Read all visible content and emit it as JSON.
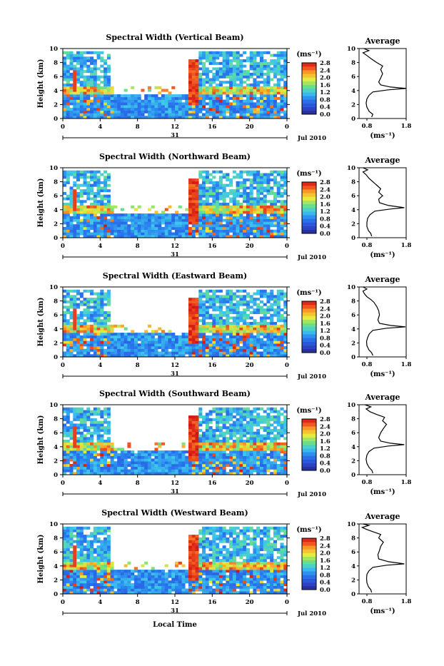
{
  "footer_label": "Local Time",
  "chart_data": [
    {
      "type": "heatmap",
      "title": "Spectral Width (Vertical Beam)",
      "ylabel": "Height (km)",
      "y_ticks": [
        "0",
        "2",
        "4",
        "6",
        "8",
        "10"
      ],
      "ylim": [
        0,
        10
      ],
      "x_ticks": [
        "0",
        "4",
        "8",
        "12",
        "16",
        "20",
        "0"
      ],
      "xlim": [
        0,
        24
      ],
      "date_day": "31",
      "date_label": "Jul 2010",
      "colorbar": {
        "unit": "(ms⁻¹)",
        "ticks": [
          "0.0",
          "0.4",
          "0.8",
          "1.2",
          "1.6",
          "2.0",
          "2.4",
          "2.8"
        ],
        "range": [
          0,
          2.8
        ]
      },
      "profile": {
        "title": "Average",
        "xlabel": "(ms⁻¹)",
        "x_ticks": [
          "0.8",
          "1.8"
        ],
        "xlim": [
          0.6,
          1.8
        ],
        "y_ticks": [
          "0",
          "2",
          "4",
          "6",
          "8",
          "10"
        ],
        "ylim": [
          0,
          10
        ],
        "points": [
          [
            0.92,
            0.2
          ],
          [
            0.95,
            0.6
          ],
          [
            0.86,
            1.0
          ],
          [
            0.8,
            1.6
          ],
          [
            0.78,
            2.2
          ],
          [
            0.8,
            2.8
          ],
          [
            0.85,
            3.3
          ],
          [
            0.95,
            3.8
          ],
          [
            1.35,
            4.1
          ],
          [
            1.8,
            4.3
          ],
          [
            1.4,
            4.5
          ],
          [
            1.15,
            4.8
          ],
          [
            1.1,
            5.2
          ],
          [
            1.15,
            5.8
          ],
          [
            1.2,
            6.4
          ],
          [
            1.15,
            7.0
          ],
          [
            1.2,
            7.5
          ],
          [
            1.05,
            8.0
          ],
          [
            0.92,
            8.5
          ],
          [
            0.8,
            9.0
          ],
          [
            0.7,
            9.4
          ],
          [
            0.85,
            9.7
          ],
          [
            0.72,
            10.0
          ]
        ]
      }
    },
    {
      "type": "heatmap",
      "title": "Spectral Width (Northward Beam)",
      "ylabel": "Height (km)",
      "y_ticks": [
        "0",
        "2",
        "4",
        "6",
        "8",
        "10"
      ],
      "ylim": [
        0,
        10
      ],
      "x_ticks": [
        "0",
        "4",
        "8",
        "12",
        "16",
        "20",
        "0"
      ],
      "xlim": [
        0,
        24
      ],
      "date_day": "31",
      "date_label": "Jul 2010",
      "colorbar": {
        "unit": "(ms⁻¹)",
        "ticks": [
          "0.0",
          "0.4",
          "0.8",
          "1.2",
          "1.6",
          "2.0",
          "2.4",
          "2.8"
        ],
        "range": [
          0,
          2.8
        ]
      },
      "profile": {
        "title": "Average",
        "xlabel": "(ms⁻¹)",
        "x_ticks": [
          "0.8",
          "1.8"
        ],
        "xlim": [
          0.6,
          1.8
        ],
        "y_ticks": [
          "0",
          "2",
          "4",
          "6",
          "8",
          "10"
        ],
        "ylim": [
          0,
          10
        ],
        "points": [
          [
            0.92,
            0.2
          ],
          [
            0.9,
            0.6
          ],
          [
            0.84,
            1.0
          ],
          [
            0.8,
            1.6
          ],
          [
            0.8,
            2.2
          ],
          [
            0.82,
            2.8
          ],
          [
            0.88,
            3.3
          ],
          [
            1.0,
            3.8
          ],
          [
            1.4,
            4.1
          ],
          [
            1.75,
            4.3
          ],
          [
            1.35,
            4.6
          ],
          [
            1.12,
            5.0
          ],
          [
            1.1,
            5.5
          ],
          [
            1.2,
            6.0
          ],
          [
            1.1,
            6.5
          ],
          [
            1.15,
            7.0
          ],
          [
            1.05,
            7.5
          ],
          [
            0.95,
            8.0
          ],
          [
            0.85,
            8.5
          ],
          [
            0.78,
            9.0
          ],
          [
            0.7,
            9.4
          ],
          [
            0.82,
            9.7
          ],
          [
            0.7,
            10.0
          ]
        ]
      }
    },
    {
      "type": "heatmap",
      "title": "Spectral Width (Eastward Beam)",
      "ylabel": "Height (km)",
      "y_ticks": [
        "0",
        "2",
        "4",
        "6",
        "8",
        "10"
      ],
      "ylim": [
        0,
        10
      ],
      "x_ticks": [
        "0",
        "4",
        "8",
        "12",
        "16",
        "20",
        "0"
      ],
      "xlim": [
        0,
        24
      ],
      "date_day": "31",
      "date_label": "Jul 2010",
      "colorbar": {
        "unit": "(ms⁻¹)",
        "ticks": [
          "0.0",
          "0.4",
          "0.8",
          "1.2",
          "1.6",
          "2.0",
          "2.4",
          "2.8"
        ],
        "range": [
          0,
          2.8
        ]
      },
      "profile": {
        "title": "Average",
        "xlabel": "(ms⁻¹)",
        "x_ticks": [
          "0.8",
          "1.8"
        ],
        "xlim": [
          0.6,
          1.8
        ],
        "y_ticks": [
          "0",
          "2",
          "4",
          "6",
          "8",
          "10"
        ],
        "ylim": [
          0,
          10
        ],
        "points": [
          [
            0.95,
            0.2
          ],
          [
            0.92,
            0.6
          ],
          [
            0.85,
            1.0
          ],
          [
            0.8,
            1.6
          ],
          [
            0.79,
            2.2
          ],
          [
            0.82,
            2.8
          ],
          [
            0.86,
            3.3
          ],
          [
            0.95,
            3.8
          ],
          [
            1.3,
            4.1
          ],
          [
            1.78,
            4.3
          ],
          [
            1.4,
            4.5
          ],
          [
            1.12,
            4.8
          ],
          [
            1.08,
            5.3
          ],
          [
            1.12,
            6.0
          ],
          [
            1.1,
            6.6
          ],
          [
            1.05,
            7.2
          ],
          [
            0.98,
            7.8
          ],
          [
            0.9,
            8.2
          ],
          [
            0.8,
            8.6
          ],
          [
            0.74,
            9.0
          ],
          [
            0.7,
            9.4
          ],
          [
            0.8,
            9.7
          ],
          [
            0.7,
            10.0
          ]
        ]
      }
    },
    {
      "type": "heatmap",
      "title": "Spectral Width (Southward Beam)",
      "ylabel": "Height (km)",
      "y_ticks": [
        "0",
        "2",
        "4",
        "6",
        "8",
        "10"
      ],
      "ylim": [
        0,
        10
      ],
      "x_ticks": [
        "0",
        "4",
        "8",
        "12",
        "16",
        "20",
        "0"
      ],
      "xlim": [
        0,
        24
      ],
      "date_day": "31",
      "date_label": "Jul 2010",
      "colorbar": {
        "unit": "(ms⁻¹)",
        "ticks": [
          "0.0",
          "0.4",
          "0.8",
          "1.2",
          "1.6",
          "2.0",
          "2.4",
          "2.8"
        ],
        "range": [
          0,
          2.8
        ]
      },
      "profile": {
        "title": "Average",
        "xlabel": "(ms⁻¹)",
        "x_ticks": [
          "0.8",
          "1.8"
        ],
        "xlim": [
          0.6,
          1.8
        ],
        "y_ticks": [
          "0",
          "2",
          "4",
          "6",
          "8",
          "10"
        ],
        "ylim": [
          0,
          10
        ],
        "points": [
          [
            0.95,
            0.2
          ],
          [
            0.93,
            0.6
          ],
          [
            0.86,
            1.0
          ],
          [
            0.8,
            1.6
          ],
          [
            0.78,
            2.2
          ],
          [
            0.8,
            2.8
          ],
          [
            0.85,
            3.3
          ],
          [
            0.98,
            3.8
          ],
          [
            1.35,
            4.1
          ],
          [
            1.75,
            4.3
          ],
          [
            1.4,
            4.5
          ],
          [
            1.15,
            4.8
          ],
          [
            1.1,
            5.3
          ],
          [
            1.15,
            6.0
          ],
          [
            1.22,
            6.6
          ],
          [
            1.3,
            7.2
          ],
          [
            1.2,
            7.7
          ],
          [
            1.25,
            8.2
          ],
          [
            1.05,
            8.6
          ],
          [
            0.88,
            9.0
          ],
          [
            0.78,
            9.4
          ],
          [
            0.9,
            9.7
          ],
          [
            0.75,
            10.0
          ]
        ]
      }
    },
    {
      "type": "heatmap",
      "title": "Spectral Width (Westward Beam)",
      "ylabel": "Height (km)",
      "y_ticks": [
        "0",
        "2",
        "4",
        "6",
        "8",
        "10"
      ],
      "ylim": [
        0,
        10
      ],
      "x_ticks": [
        "0",
        "4",
        "8",
        "12",
        "16",
        "20",
        "0"
      ],
      "xlim": [
        0,
        24
      ],
      "date_day": "31",
      "date_label": "Jul 2010",
      "colorbar": {
        "unit": "(ms⁻¹)",
        "ticks": [
          "0.0",
          "0.4",
          "0.8",
          "1.2",
          "1.6",
          "2.0",
          "2.4",
          "2.8"
        ],
        "range": [
          0,
          2.8
        ]
      },
      "profile": {
        "title": "Average",
        "xlabel": "(ms⁻¹)",
        "x_ticks": [
          "0.8",
          "1.8"
        ],
        "xlim": [
          0.6,
          1.8
        ],
        "y_ticks": [
          "0",
          "2",
          "4",
          "6",
          "8",
          "10"
        ],
        "ylim": [
          0,
          10
        ],
        "points": [
          [
            0.92,
            0.2
          ],
          [
            0.9,
            0.6
          ],
          [
            0.84,
            1.0
          ],
          [
            0.8,
            1.6
          ],
          [
            0.79,
            2.2
          ],
          [
            0.8,
            2.8
          ],
          [
            0.85,
            3.3
          ],
          [
            0.95,
            3.8
          ],
          [
            1.3,
            4.1
          ],
          [
            1.75,
            4.3
          ],
          [
            1.35,
            4.6
          ],
          [
            1.1,
            5.0
          ],
          [
            1.08,
            5.6
          ],
          [
            1.12,
            6.2
          ],
          [
            1.15,
            6.8
          ],
          [
            1.22,
            7.4
          ],
          [
            1.1,
            8.0
          ],
          [
            1.15,
            8.5
          ],
          [
            0.95,
            8.9
          ],
          [
            0.8,
            9.2
          ],
          [
            0.68,
            9.5
          ],
          [
            0.85,
            9.8
          ],
          [
            0.7,
            10.0
          ]
        ]
      }
    }
  ]
}
